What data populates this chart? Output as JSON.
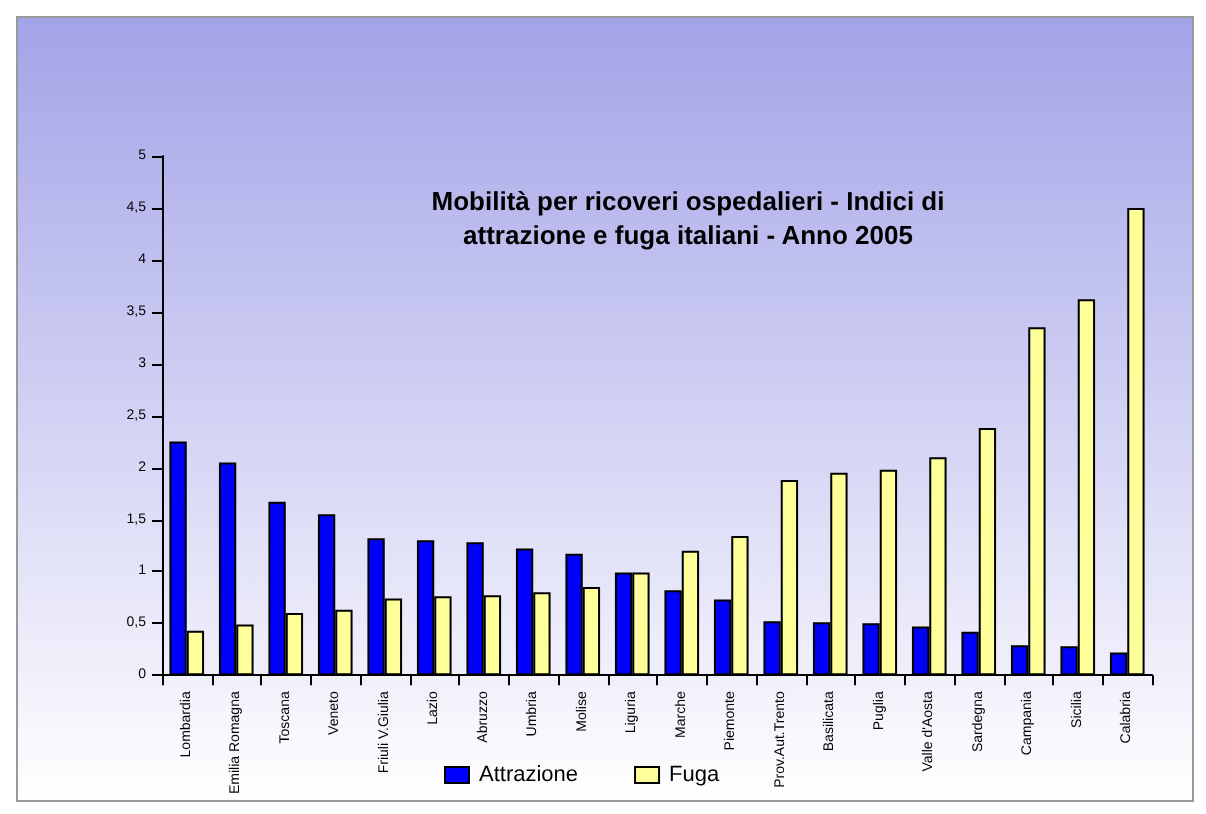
{
  "chart_data": {
    "type": "bar",
    "title": "Mobilità per ricoveri ospedalieri - Indici di\nattrazione e fuga italiani - Anno 2005",
    "categories": [
      "Lombardia",
      "Emilia Romagna",
      "Toscana",
      "Veneto",
      "Friuli V.Giulia",
      "Lazio",
      "Abruzzo",
      "Umbria",
      "Molise",
      "Liguria",
      "Marche",
      "Piemonte",
      "Prov.Aut.Trento",
      "Basilicata",
      "Puglia",
      "Valle d'Aosta",
      "Sardegna",
      "Campania",
      "Sicilia",
      "Calabria"
    ],
    "series": [
      {
        "name": "Attrazione",
        "color": "#0000ff",
        "values": [
          2.25,
          2.05,
          1.67,
          1.55,
          1.32,
          1.3,
          1.28,
          1.22,
          1.17,
          0.99,
          0.82,
          0.73,
          0.52,
          0.51,
          0.5,
          0.47,
          0.42,
          0.29,
          0.28,
          0.22
        ]
      },
      {
        "name": "Fuga",
        "color": "#ffff99",
        "values": [
          0.43,
          0.49,
          0.6,
          0.63,
          0.74,
          0.76,
          0.77,
          0.8,
          0.85,
          0.99,
          1.2,
          1.34,
          1.88,
          1.95,
          1.98,
          2.1,
          2.38,
          3.35,
          3.62,
          4.5
        ]
      }
    ],
    "ylim": [
      0,
      5
    ],
    "yticks": [
      0,
      {
        "value": 0.5,
        "label": "0,5"
      },
      1,
      {
        "value": 1.5,
        "label": "1,5"
      },
      2,
      {
        "value": 2.5,
        "label": "2,5"
      },
      3,
      {
        "value": 3.5,
        "label": "3,5"
      },
      4,
      {
        "value": 4.5,
        "label": "4,5"
      },
      5
    ],
    "grid": false,
    "legend": "bottom"
  }
}
